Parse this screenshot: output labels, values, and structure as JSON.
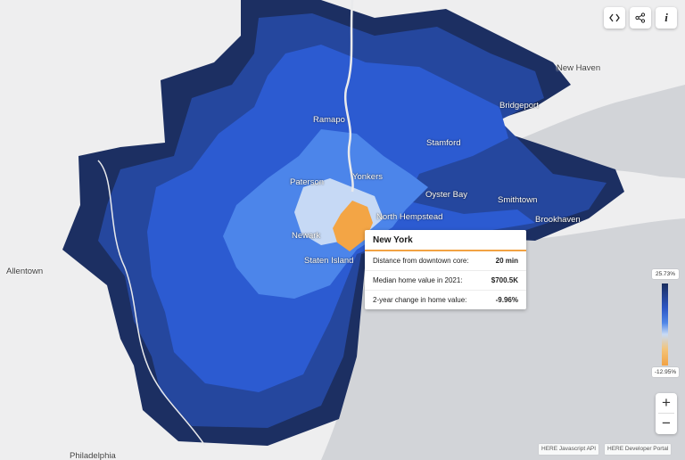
{
  "map": {
    "cities": [
      {
        "id": "new-haven",
        "name": "New Haven"
      },
      {
        "id": "bridgeport",
        "name": "Bridgeport"
      },
      {
        "id": "ramapo",
        "name": "Ramapo"
      },
      {
        "id": "stamford",
        "name": "Stamford"
      },
      {
        "id": "yonkers",
        "name": "Yonkers"
      },
      {
        "id": "paterson",
        "name": "Paterson"
      },
      {
        "id": "oyster-bay",
        "name": "Oyster Bay"
      },
      {
        "id": "smithtown",
        "name": "Smithtown"
      },
      {
        "id": "north-hempstead",
        "name": "North Hempstead"
      },
      {
        "id": "brookhaven",
        "name": "Brookhaven"
      },
      {
        "id": "newark",
        "name": "Newark"
      },
      {
        "id": "staten-island",
        "name": "Staten Island"
      },
      {
        "id": "allentown",
        "name": "Allentown"
      },
      {
        "id": "philadelphia",
        "name": "Philadelphia"
      }
    ]
  },
  "tooltip": {
    "title": "New York",
    "rows": [
      {
        "label": "Distance from downtown core:",
        "value": "20 min"
      },
      {
        "label": "Median home value in 2021:",
        "value": "$700.5K"
      },
      {
        "label": "2-year change in home value:",
        "value": "-9.96%"
      }
    ]
  },
  "legend": {
    "max_label": "25.73%",
    "min_label": "-12.95%",
    "colors": [
      "#1a2d5e",
      "#2d57c5",
      "#4f86e8",
      "#c8dbf5",
      "#f3c47a",
      "#f2a243"
    ]
  },
  "controls": {
    "top": [
      {
        "id": "embed",
        "icon": "code-icon"
      },
      {
        "id": "share",
        "icon": "share-icon"
      },
      {
        "id": "info",
        "icon": "info-icon",
        "glyph": "i"
      }
    ],
    "zoom_in": "+",
    "zoom_out": "−"
  },
  "attribution": {
    "js_api": "HERE Javascript API",
    "portal": "HERE Developer Portal"
  },
  "colors": {
    "water": "#d2d4d8",
    "land": "#eeeeef",
    "darkest": "#1c2f62",
    "dark": "#25479e",
    "mid": "#2c5bd1",
    "light": "#4c85ea",
    "pale": "#c6d9f5",
    "orange": "#f3a545"
  }
}
